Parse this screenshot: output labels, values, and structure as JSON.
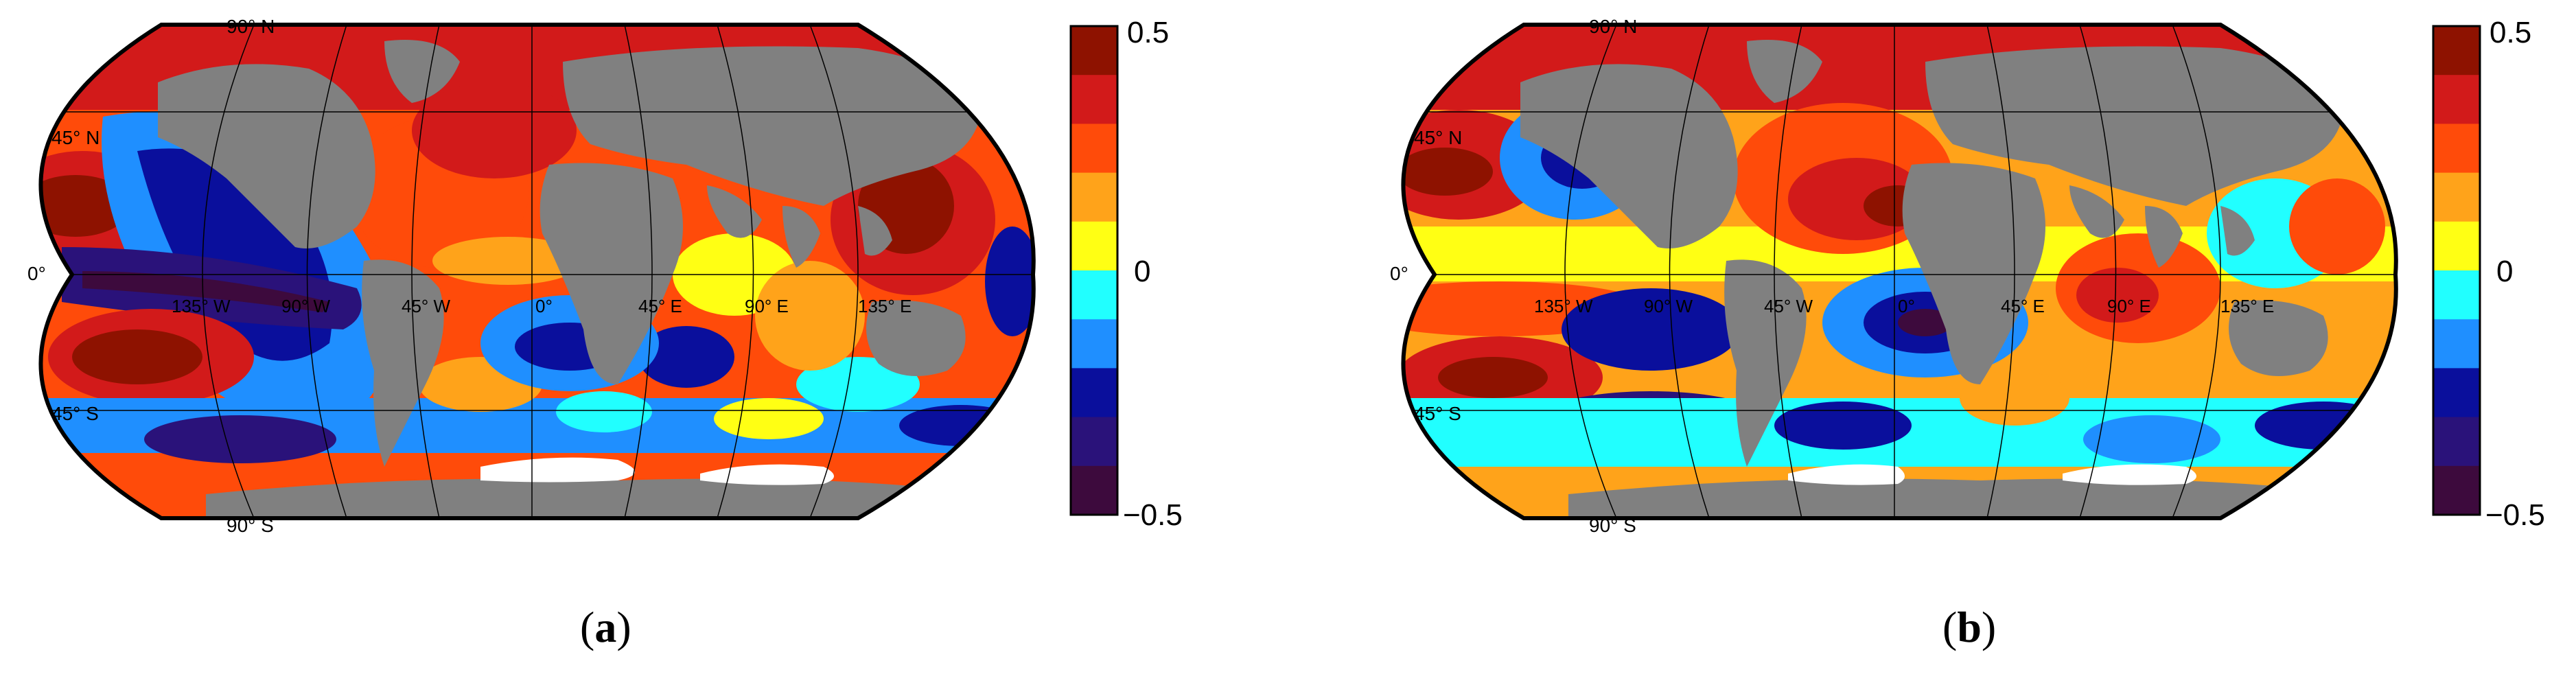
{
  "figure": {
    "panels": [
      {
        "id": "a",
        "caption_open": "(",
        "caption_letter": "a",
        "caption_close": ")",
        "lat_labels": [
          "90° N",
          "45° N",
          "0°",
          "45° S",
          "90° S"
        ],
        "lon_labels": [
          "135° W",
          "90° W",
          "45° W",
          "0°",
          "45° E",
          "90° E",
          "135° E"
        ],
        "colorbar": {
          "max_label": "0.5",
          "mid_label": "0",
          "min_label": "−0.5"
        }
      },
      {
        "id": "b",
        "caption_open": "(",
        "caption_letter": "b",
        "caption_close": ")",
        "lat_labels": [
          "90° N",
          "45° N",
          "0°",
          "45° S",
          "90° S"
        ],
        "lon_labels": [
          "135° W",
          "90° W",
          "45° W",
          "0°",
          "45° E",
          "90° E",
          "135° E"
        ],
        "colorbar": {
          "max_label": "0.5",
          "mid_label": "0",
          "min_label": "−0.5"
        }
      }
    ],
    "colorbar_levels": [
      0.5,
      0.4,
      0.3,
      0.2,
      0.1,
      0,
      -0.1,
      -0.2,
      -0.3,
      -0.4,
      -0.5
    ],
    "colorbar_colors": [
      "#8e1200",
      "#d21a1a",
      "#ff4b0a",
      "#ffa31a",
      "#ffff14",
      "#21ffff",
      "#1f8fff",
      "#0a0f9c",
      "#2a127a",
      "#3d0a3d"
    ],
    "land_color": "#808080",
    "ice_color": "#ffffff"
  }
}
